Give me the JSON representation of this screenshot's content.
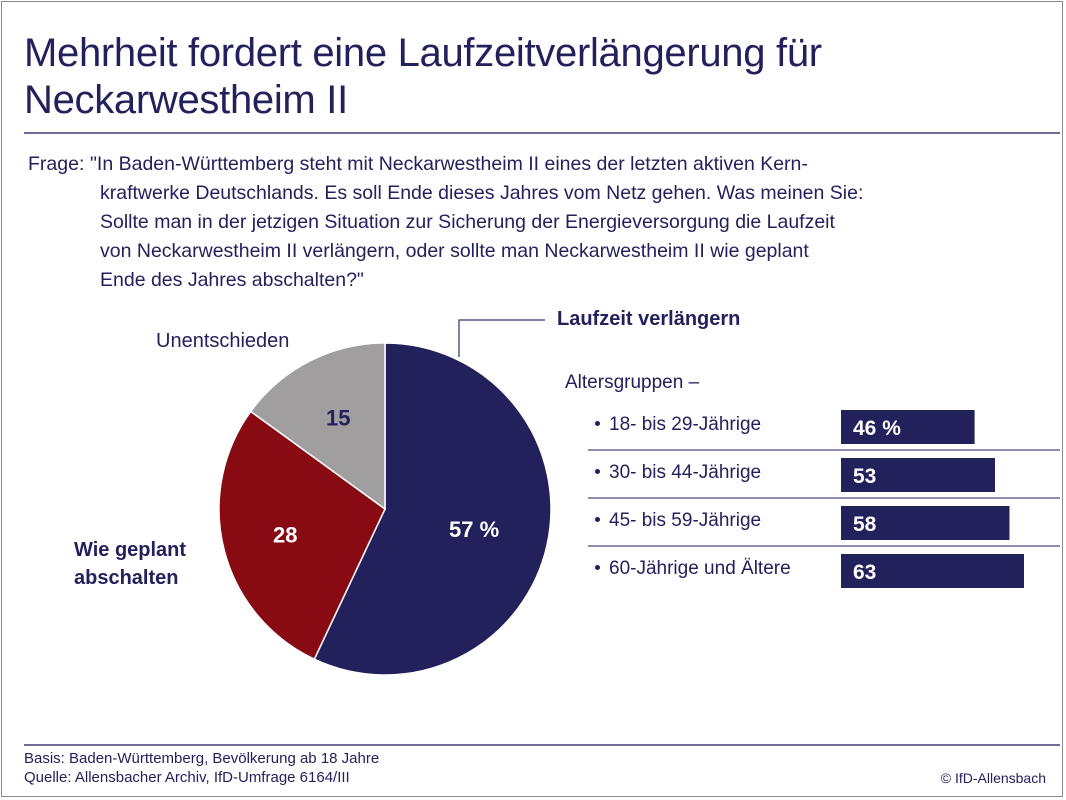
{
  "title": "Mehrheit fordert eine Laufzeitverlängerung für Neckarwestheim II",
  "title_lines": [
    "Mehrheit fordert eine Laufzeitverlängerung für",
    "Neckarwestheim II"
  ],
  "question": {
    "label": "Frage:",
    "first_line": "\"In Baden-Württemberg steht mit Neckarwestheim II eines der letzten aktiven Kern-",
    "rest_lines": [
      "kraftwerke Deutschlands. Es soll Ende dieses Jahres vom Netz gehen. Was meinen Sie:",
      "Sollte man in der jetzigen Situation zur Sicherung der Energieversorgung die Laufzeit",
      "von Neckarwestheim II verlängern, oder sollte man Neckarwestheim II wie geplant",
      "Ende des Jahres abschalten?\""
    ]
  },
  "colors": {
    "navy": "#23215c",
    "red": "#880b14",
    "gray": "#a09e9e",
    "rule": "#6f6c99",
    "divider": "#8f8cb3"
  },
  "chart_data": [
    {
      "type": "pie",
      "title": "",
      "unit": "%",
      "start_angle_deg": 0,
      "direction": "clockwise",
      "slices": [
        {
          "label": "Laufzeit verlängern",
          "value": 57,
          "display": "57 %",
          "color": "#23215c",
          "value_color": "#ffffff"
        },
        {
          "label": "Wie geplant abschalten",
          "value": 28,
          "display": "28",
          "color": "#880b14",
          "value_color": "#ffffff"
        },
        {
          "label": "Unentschieden",
          "value": 15,
          "display": "15",
          "color": "#a09e9e",
          "value_color": "#23215c"
        }
      ]
    },
    {
      "type": "bar",
      "orientation": "horizontal",
      "title": "Altersgruppen –",
      "subtitle": "Laufzeit verlängern",
      "unit": "%",
      "xlim": [
        0,
        63
      ],
      "categories": [
        "18- bis 29-Jährige",
        "30- bis 44-Jährige",
        "45- bis 59-Jährige",
        "60-Jährige und Ältere"
      ],
      "values": [
        46,
        53,
        58,
        63
      ],
      "value_labels": [
        "46 %",
        "53",
        "58",
        "63"
      ],
      "color": "#23215c"
    }
  ],
  "labels": {
    "undecided": "Unentschieden",
    "shutdown_line1": "Wie geplant",
    "shutdown_line2": "abschalten",
    "extend": "Laufzeit verlängern",
    "age_groups": "Altersgruppen –"
  },
  "footer": {
    "basis": "Basis: Baden-Württemberg, Bevölkerung ab 18 Jahre",
    "source": "Quelle: Allensbacher Archiv, IfD-Umfrage 6164/III",
    "copyright": "© IfD-Allensbach"
  }
}
